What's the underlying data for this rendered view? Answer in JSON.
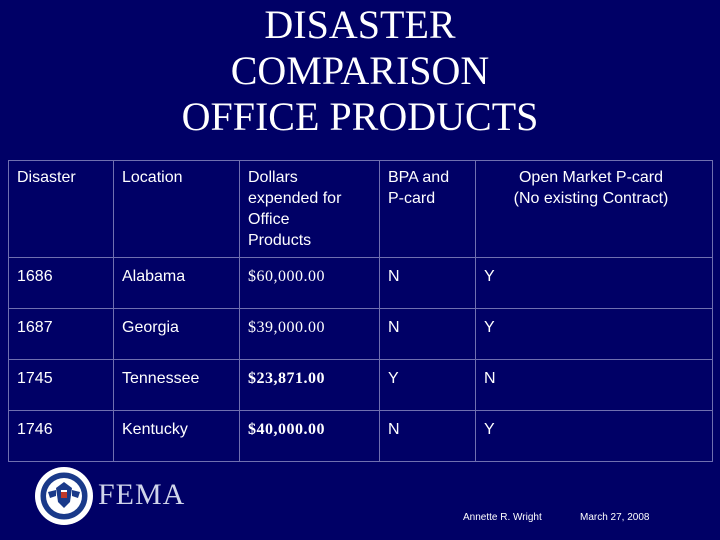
{
  "title_lines": [
    "DISASTER",
    "COMPARISON",
    "OFFICE PRODUCTS"
  ],
  "table": {
    "headers": [
      [
        "Disaster"
      ],
      [
        "Location"
      ],
      [
        "Dollars",
        "expended for",
        "Office",
        "Products"
      ],
      [
        "BPA and",
        "P-card"
      ],
      [
        "Open Market P-card",
        "(No existing Contract)"
      ]
    ],
    "rows": [
      {
        "disaster": "1686",
        "location": "Alabama",
        "dollars": "$60,000.00",
        "bpa": "N",
        "open_market": "Y"
      },
      {
        "disaster": "1687",
        "location": "Georgia",
        "dollars": "$39,000.00",
        "bpa": "N",
        "open_market": "Y"
      },
      {
        "disaster": "1745",
        "location": "Tennessee",
        "dollars": "$23,871.00",
        "bpa": "Y",
        "open_market": "N"
      },
      {
        "disaster": "1746",
        "location": "Kentucky",
        "dollars": "$40,000.00",
        "bpa": "N",
        "open_market": "Y"
      }
    ]
  },
  "footer": {
    "logo_text": "FEMA",
    "seal_icon": "dhs-seal-icon",
    "author": "Annette R. Wright",
    "date": "March 27, 2008"
  },
  "colors": {
    "background": "#000066",
    "text": "#ffffff",
    "grid": "#6f6fb0"
  }
}
